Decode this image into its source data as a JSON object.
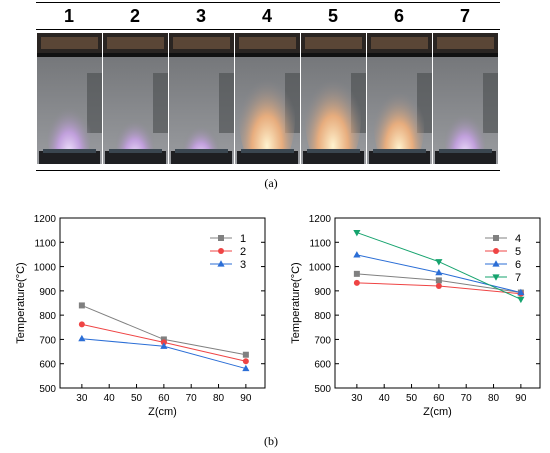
{
  "photo_panel": {
    "labels": [
      "1",
      "2",
      "3",
      "4",
      "5",
      "6",
      "7"
    ],
    "caption": "(a)"
  },
  "caption_b": "(b)",
  "chart_data": [
    {
      "type": "line",
      "x": [
        30,
        60,
        90
      ],
      "xlabel": "Z(cm)",
      "ylabel": "Temperature(°C)",
      "xlim": [
        22,
        97
      ],
      "ylim": [
        500,
        1200
      ],
      "xticks": [
        30,
        40,
        50,
        60,
        70,
        80,
        90
      ],
      "yticks": [
        500,
        600,
        700,
        800,
        900,
        1000,
        1100,
        1200
      ],
      "legend_position": "top-right",
      "series": [
        {
          "name": "1",
          "values": [
            840,
            700,
            637
          ],
          "color": "#808080",
          "marker": "square"
        },
        {
          "name": "2",
          "values": [
            762,
            688,
            610
          ],
          "color": "#ef4444",
          "marker": "circle"
        },
        {
          "name": "3",
          "values": [
            703,
            672,
            580
          ],
          "color": "#2b6ed6",
          "marker": "triangle-up"
        }
      ]
    },
    {
      "type": "line",
      "x": [
        30,
        60,
        90
      ],
      "xlabel": "Z(cm)",
      "ylabel": "Temperature(°C)",
      "xlim": [
        22,
        97
      ],
      "ylim": [
        500,
        1200
      ],
      "xticks": [
        30,
        40,
        50,
        60,
        70,
        80,
        90
      ],
      "yticks": [
        500,
        600,
        700,
        800,
        900,
        1000,
        1100,
        1200
      ],
      "legend_position": "top-right",
      "series": [
        {
          "name": "4",
          "values": [
            970,
            943,
            893
          ],
          "color": "#808080",
          "marker": "square"
        },
        {
          "name": "5",
          "values": [
            933,
            920,
            888
          ],
          "color": "#ef4444",
          "marker": "circle"
        },
        {
          "name": "6",
          "values": [
            1048,
            975,
            893
          ],
          "color": "#2b6ed6",
          "marker": "triangle-up"
        },
        {
          "name": "7",
          "values": [
            1140,
            1020,
            865
          ],
          "color": "#16a36e",
          "marker": "triangle-down"
        }
      ]
    }
  ]
}
